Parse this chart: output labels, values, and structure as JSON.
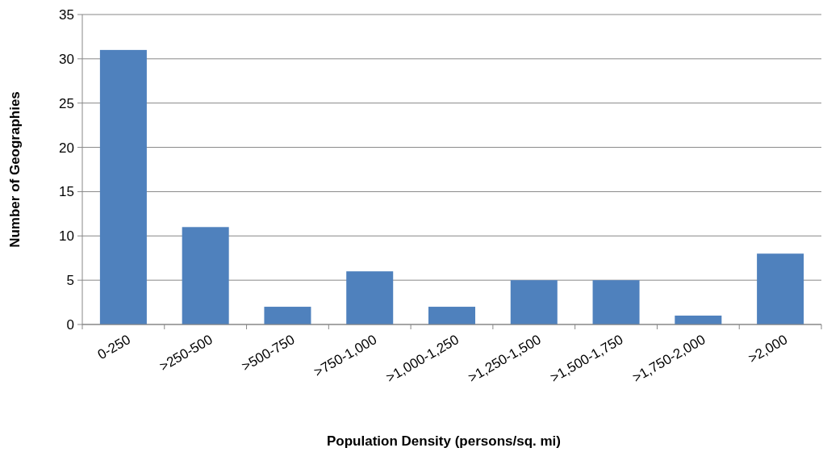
{
  "chart_data": {
    "type": "bar",
    "xlabel": "Population Density (persons/sq. mi)",
    "ylabel": "Number of Geographies",
    "categories": [
      "0-250",
      ">250-500",
      ">500-750",
      ">750-1,000",
      ">1,000-1,250",
      ">1,250-1,500",
      ">1,500-1,750",
      ">1,750-2,000",
      ">2,000"
    ],
    "values": [
      31,
      11,
      2,
      6,
      2,
      5,
      5,
      1,
      8
    ],
    "color": "#4f81bd",
    "ylim": [
      0,
      35
    ],
    "yticks": [
      0,
      5,
      10,
      15,
      20,
      25,
      30,
      35
    ],
    "grid": "y"
  }
}
